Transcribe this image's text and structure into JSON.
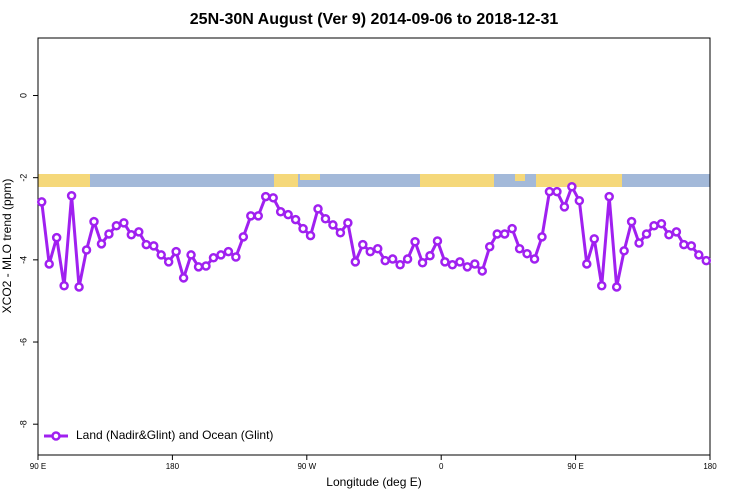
{
  "chart_data": {
    "type": "line",
    "title": "25N-30N August (Ver 9)   2014-09-06 to 2018-12-31",
    "x_label": "Longitude (deg E)",
    "y_label": "XCO2 - MLO trend (ppm)",
    "x": [
      92.5,
      97.5,
      102.5,
      107.5,
      112.5,
      117.5,
      122.5,
      127.5,
      132.5,
      137.5,
      142.5,
      147.5,
      152.5,
      157.5,
      162.5,
      167.5,
      172.5,
      177.5,
      182.5,
      187.5,
      192.5,
      197.5,
      202.5,
      207.5,
      212.5,
      217.5,
      222.5,
      227.5,
      232.5,
      237.5,
      242.5,
      247.5,
      252.5,
      257.5,
      262.5,
      267.5,
      272.5,
      277.5,
      282.5,
      287.5,
      292.5,
      297.5,
      302.5,
      307.5,
      312.5,
      317.5,
      322.5,
      327.5,
      332.5,
      337.5,
      342.5,
      347.5,
      352.5,
      357.5,
      362.5,
      367.5,
      372.5,
      377.5,
      382.5,
      387.5,
      392.5,
      397.5,
      402.5,
      407.5,
      412.5,
      417.5,
      422.5,
      427.5,
      432.5,
      437.5,
      442.5,
      447.5,
      452.5,
      457.5,
      462.5,
      467.5,
      472.5,
      477.5,
      482.5,
      487.5,
      492.5,
      497.5,
      502.5,
      507.5,
      512.5,
      517.5,
      522.5,
      527.5,
      532.5,
      537.5
    ],
    "series": [
      {
        "name": "Land (Nadir&Glint) and Ocean (Glint)",
        "color": "#a020f0",
        "values": [
          -2.59,
          -4.1,
          -3.46,
          -4.63,
          -2.44,
          -4.66,
          -3.76,
          -3.07,
          -3.61,
          -3.37,
          -3.17,
          -3.1,
          -3.39,
          -3.32,
          -3.63,
          -3.66,
          -3.88,
          -4.05,
          -3.8,
          -4.44,
          -3.88,
          -4.17,
          -4.15,
          -3.95,
          -3.88,
          -3.8,
          -3.93,
          -3.44,
          -2.93,
          -2.93,
          -2.46,
          -2.49,
          -2.83,
          -2.9,
          -3.02,
          -3.24,
          -3.41,
          -2.76,
          -3.0,
          -3.15,
          -3.34,
          -3.1,
          -4.05,
          -3.63,
          -3.8,
          -3.73,
          -4.02,
          -3.98,
          -4.12,
          -3.98,
          -3.56,
          -4.07,
          -3.9,
          -3.54,
          -4.05,
          -4.12,
          -4.05,
          -4.17,
          -4.1,
          -4.27,
          -3.68,
          -3.37,
          -3.37,
          -3.24,
          -3.73,
          -3.85,
          -3.98,
          -3.44,
          -2.34,
          -2.34,
          -2.71,
          -2.22,
          -2.56,
          -4.1,
          -3.49,
          -4.63,
          -2.46,
          -4.66,
          -3.78,
          -3.07,
          -3.59,
          -3.37,
          -3.17,
          -3.12,
          -3.39,
          -3.32,
          -3.63,
          -3.66,
          -3.88,
          -4.02
        ]
      }
    ],
    "xlim": [
      90,
      540
    ],
    "xticks": [
      {
        "value": 90,
        "label": "90 E"
      },
      {
        "value": 180,
        "label": "180"
      },
      {
        "value": 270,
        "label": "90 W"
      },
      {
        "value": 360,
        "label": "0"
      },
      {
        "value": 450,
        "label": "90 E"
      },
      {
        "value": 540,
        "label": "180"
      }
    ],
    "ylim": [
      -8.75,
      1.4
    ],
    "yticks": [
      0,
      -2,
      -4,
      -6,
      -8
    ],
    "legend": "bottom-left"
  }
}
